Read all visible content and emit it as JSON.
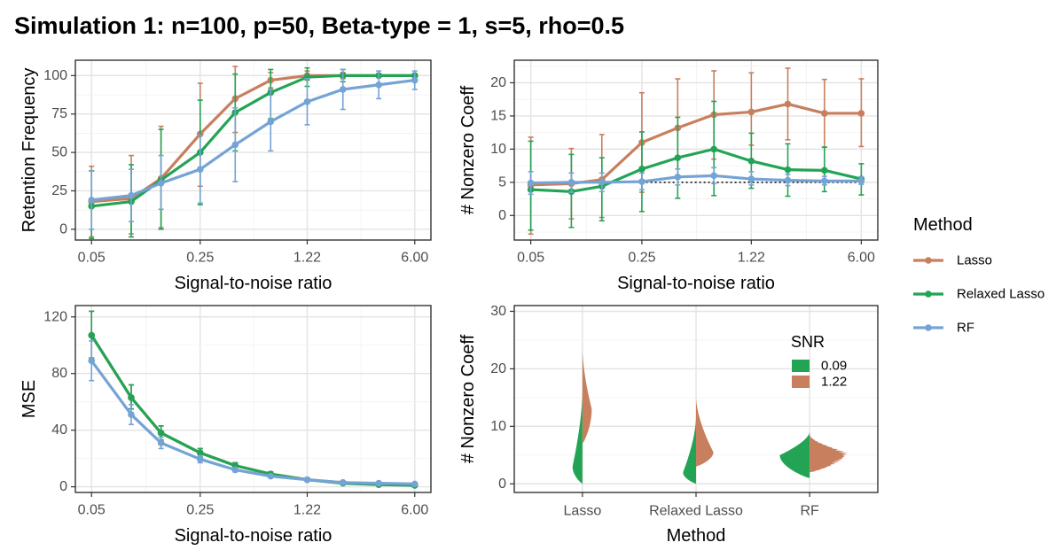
{
  "title": "Simulation 1: n=100, p=50, Beta-type = 1, s=5, rho=0.5",
  "legend": {
    "title": "Method",
    "items": [
      {
        "label": "Lasso",
        "color": "#C87F5E"
      },
      {
        "label": "Relaxed Lasso",
        "color": "#23A455"
      },
      {
        "label": "RF",
        "color": "#74A3D6"
      }
    ]
  },
  "chart_data": [
    {
      "type": "line",
      "panel": "top-left",
      "xlabel": "Signal-to-noise ratio",
      "ylabel": "Retention Frequency",
      "x": [
        0.05,
        0.09,
        0.14,
        0.25,
        0.42,
        0.71,
        1.22,
        2.07,
        3.52,
        6.0
      ],
      "xscale": "log",
      "xticks": [
        "0.05",
        "0.25",
        "1.22",
        "6.00"
      ],
      "ylim": [
        -7,
        110
      ],
      "yticks": [
        0,
        25,
        50,
        75,
        100
      ],
      "grid": true,
      "series": [
        {
          "name": "Lasso",
          "values": [
            18,
            20,
            33,
            62,
            85,
            97,
            100,
            100,
            100,
            100
          ],
          "lower": [
            -5,
            -3,
            1,
            28,
            63,
            92,
            97,
            98,
            100,
            100
          ],
          "upper": [
            41,
            48,
            67,
            95,
            106,
            102,
            103,
            102,
            100,
            100
          ]
        },
        {
          "name": "Relaxed Lasso",
          "values": [
            15,
            18,
            32,
            50,
            76,
            89,
            99,
            100,
            100,
            100
          ],
          "lower": [
            -6,
            -5,
            0,
            16,
            51,
            72,
            93,
            96,
            100,
            100
          ],
          "upper": [
            38,
            42,
            65,
            84,
            101,
            104,
            105,
            104,
            100,
            100
          ]
        },
        {
          "name": "RF",
          "values": [
            19,
            22,
            30,
            39,
            55,
            70,
            83,
            91,
            94,
            97
          ],
          "lower": [
            0,
            5,
            13,
            17,
            31,
            51,
            68,
            78,
            85,
            91
          ],
          "upper": [
            38,
            39,
            48,
            61,
            79,
            91,
            98,
            104,
            103,
            103
          ]
        }
      ]
    },
    {
      "type": "line",
      "panel": "top-right",
      "xlabel": "Signal-to-noise ratio",
      "ylabel": "# Nonzero Coeff",
      "x": [
        0.05,
        0.09,
        0.14,
        0.25,
        0.42,
        0.71,
        1.22,
        2.07,
        3.52,
        6.0
      ],
      "xscale": "log",
      "xticks": [
        "0.05",
        "0.25",
        "1.22",
        "6.00"
      ],
      "ylim": [
        -3.7,
        23.4
      ],
      "yticks": [
        0,
        5,
        10,
        15,
        20
      ],
      "grid": true,
      "reference_line": {
        "y": 5,
        "style": "dotted"
      },
      "series": [
        {
          "name": "Lasso",
          "values": [
            4.6,
            4.8,
            5.4,
            11.0,
            13.2,
            15.2,
            15.6,
            16.8,
            15.4,
            15.4
          ],
          "lower": [
            -2.8,
            -0.5,
            -0.3,
            3.5,
            6.0,
            8.5,
            10.6,
            11.4,
            10.3,
            10.4
          ],
          "upper": [
            11.8,
            10.1,
            12.2,
            18.5,
            20.6,
            21.8,
            21.5,
            22.2,
            20.5,
            20.6
          ]
        },
        {
          "name": "Relaxed Lasso",
          "values": [
            3.9,
            3.6,
            4.4,
            7.0,
            8.7,
            10.0,
            8.2,
            6.9,
            6.8,
            5.5
          ],
          "lower": [
            -2.2,
            -1.8,
            -0.8,
            0.6,
            2.6,
            3.0,
            4.1,
            2.9,
            3.6,
            3.1
          ],
          "upper": [
            11.2,
            9.2,
            8.7,
            12.6,
            14.8,
            17.2,
            12.4,
            10.8,
            10.3,
            7.8
          ]
        },
        {
          "name": "RF",
          "values": [
            4.9,
            5.0,
            5.0,
            5.1,
            5.8,
            6.0,
            5.5,
            5.3,
            5.2,
            5.2
          ],
          "lower": [
            3.2,
            3.5,
            3.6,
            3.9,
            4.6,
            4.8,
            4.6,
            4.5,
            4.6,
            4.7
          ],
          "upper": [
            6.6,
            6.4,
            6.4,
            6.4,
            7.0,
            7.2,
            6.6,
            6.2,
            5.9,
            5.8
          ]
        }
      ]
    },
    {
      "type": "line",
      "panel": "bottom-left",
      "xlabel": "Signal-to-noise ratio",
      "ylabel": "MSE",
      "x": [
        0.05,
        0.09,
        0.14,
        0.25,
        0.42,
        0.71,
        1.22,
        2.07,
        3.52,
        6.0
      ],
      "xscale": "log",
      "xticks": [
        "0.05",
        "0.25",
        "1.22",
        "6.00"
      ],
      "ylim": [
        -4,
        128
      ],
      "yticks": [
        0,
        40,
        80,
        120
      ],
      "grid": true,
      "series": [
        {
          "name": "Lasso",
          "values": [
            107,
            63,
            38,
            24,
            15,
            9,
            5,
            3,
            2,
            1.5
          ],
          "lower": [
            91,
            55,
            33,
            21,
            13,
            7.5,
            4,
            2,
            1.3,
            0.8
          ],
          "upper": [
            124,
            72,
            43,
            27,
            17,
            10.5,
            6,
            4,
            2.7,
            2
          ]
        },
        {
          "name": "Relaxed Lasso",
          "values": [
            107,
            63,
            38,
            24,
            15,
            9,
            5,
            2.5,
            1.5,
            1
          ],
          "lower": [
            91,
            55,
            33,
            21,
            13,
            7.5,
            4,
            1.8,
            0.8,
            0.4
          ],
          "upper": [
            124,
            72,
            43,
            27,
            17,
            10.5,
            6,
            3.3,
            2.2,
            1.6
          ]
        },
        {
          "name": "RF",
          "values": [
            89,
            51,
            31,
            19.5,
            12,
            7.5,
            5,
            3,
            2.5,
            2
          ],
          "lower": [
            75,
            44,
            27,
            17,
            10.5,
            6.5,
            4,
            2.2,
            1.8,
            1.3
          ],
          "upper": [
            103,
            58,
            35,
            22,
            13.5,
            8.5,
            6,
            3.8,
            3.2,
            2.7
          ]
        }
      ]
    },
    {
      "type": "violin",
      "panel": "bottom-right",
      "xlabel": "Method",
      "ylabel": "# Nonzero Coeff",
      "categories": [
        "Lasso",
        "Relaxed Lasso",
        "RF"
      ],
      "ylim": [
        -1.5,
        31
      ],
      "yticks": [
        0,
        10,
        20,
        30
      ],
      "grid": true,
      "legend": {
        "title": "SNR",
        "entries": [
          {
            "label": "0.09",
            "color": "#23A455"
          },
          {
            "label": "1.22",
            "color": "#C87F5E"
          }
        ],
        "placement": "top-right"
      },
      "distributions": [
        {
          "category": "Lasso",
          "snr": "0.09",
          "side": "left",
          "range": [
            0,
            16
          ],
          "mode": 3,
          "peak_density": 0.16
        },
        {
          "category": "Lasso",
          "snr": "1.22",
          "side": "right",
          "range": [
            7,
            23.5
          ],
          "mode": 13,
          "peak_density": 0.15
        },
        {
          "category": "Relaxed Lasso",
          "snr": "0.09",
          "side": "left",
          "range": [
            0,
            11.5
          ],
          "mode": 2,
          "peak_density": 0.21
        },
        {
          "category": "Relaxed Lasso",
          "snr": "1.22",
          "side": "right",
          "range": [
            3,
            15
          ],
          "mode": 5.5,
          "peak_density": 0.28
        },
        {
          "category": "RF",
          "snr": "0.09",
          "side": "left",
          "range": [
            1,
            9
          ],
          "mode": 5,
          "peak_density": 0.48
        },
        {
          "category": "RF",
          "snr": "1.22",
          "side": "right",
          "range": [
            2,
            8.5
          ],
          "mode": 5.5,
          "peak_density": 0.62
        }
      ]
    }
  ]
}
